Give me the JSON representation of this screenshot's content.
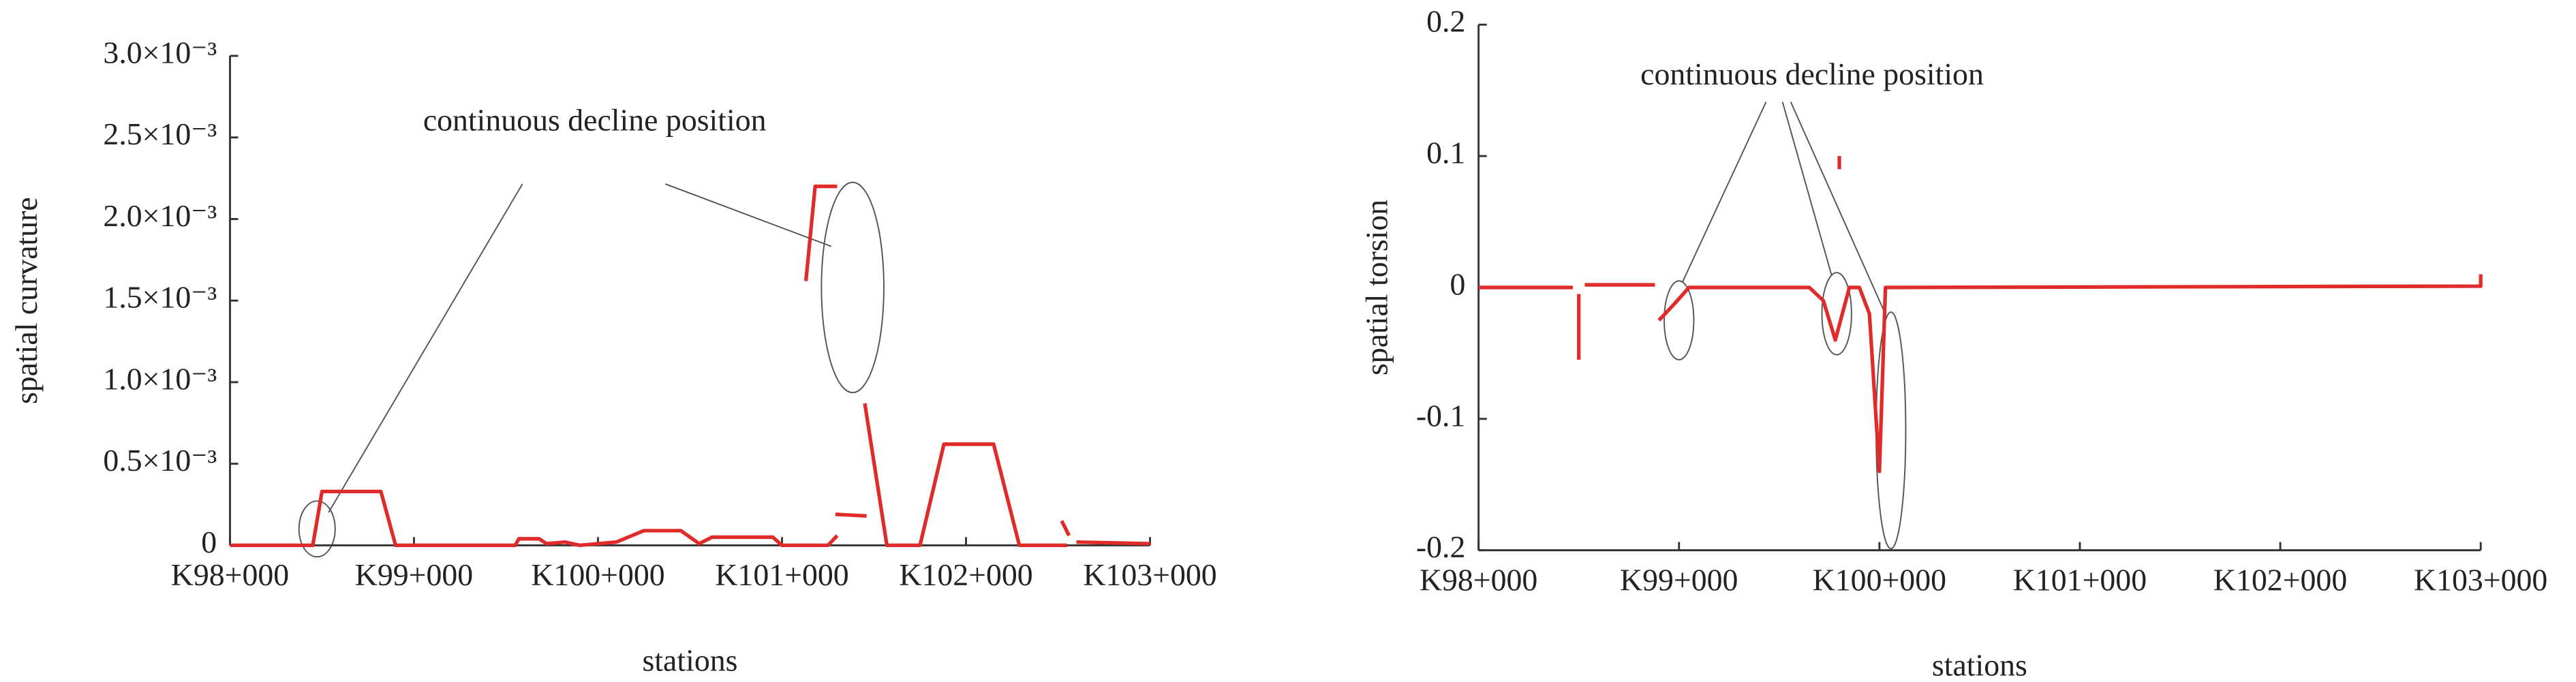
{
  "chart_data": [
    {
      "type": "line",
      "x_label": "stations",
      "y_label": "spatial curvature",
      "annotation": "continuous decline position",
      "xlim": [
        98,
        103
      ],
      "xticks": [
        {
          "value": 98,
          "label": "K98+000"
        },
        {
          "value": 99,
          "label": "K99+000"
        },
        {
          "value": 100,
          "label": "K100+000"
        },
        {
          "value": 101,
          "label": "K101+000"
        },
        {
          "value": 102,
          "label": "K102+000"
        },
        {
          "value": 103,
          "label": "K103+000"
        }
      ],
      "ylim": [
        0,
        0.003
      ],
      "yticks": [
        0,
        {
          "value": 0.0005,
          "label": "0.5×10⁻³"
        },
        {
          "value": 0.001,
          "label": "1.0×10⁻³"
        },
        {
          "value": 0.0015,
          "label": "1.5×10⁻³"
        },
        {
          "value": 0.002,
          "label": "2.0×10⁻³"
        },
        {
          "value": 0.0025,
          "label": "2.5×10⁻³"
        },
        {
          "value": 0.003,
          "label": "3.0×10⁻³"
        }
      ],
      "grid": false,
      "series": [
        {
          "color": "#e02b2b",
          "x": [
            98,
            98.45,
            98.5,
            98.82,
            98.9,
            99.55,
            99.57,
            99.68,
            99.72,
            99.82,
            99.9,
            100.1,
            100.25,
            100.45,
            100.55,
            100.62,
            100.72,
            100.95,
            101.0,
            101.25,
            101.3,
            null,
            101.13,
            101.18,
            101.3,
            null,
            101.29,
            101.46,
            null,
            101.45,
            101.57,
            101.75,
            101.88,
            102.15,
            102.29,
            102.55,
            null,
            102.52,
            102.56,
            null,
            102.6,
            103
          ],
          "values": [
            0,
            0,
            0.00033,
            0.00033,
            0,
            0,
            4e-05,
            4e-05,
            1e-05,
            2e-05,
            0,
            2e-05,
            9e-05,
            9e-05,
            1e-05,
            5e-05,
            5e-05,
            5e-05,
            0,
            0,
            6e-05,
            null,
            0.00162,
            0.0022,
            0.0022,
            null,
            0.00019,
            0.00018,
            null,
            0.00087,
            0,
            0,
            0.00062,
            0.00062,
            0,
            0,
            null,
            0.00015,
            6e-05,
            null,
            2e-05,
            1e-05
          ]
        }
      ]
    },
    {
      "type": "line",
      "x_label": "stations",
      "y_label": "spatial torsion",
      "annotation": "continuous decline position",
      "xlim": [
        98,
        103
      ],
      "xticks": [
        {
          "value": 98,
          "label": "K98+000"
        },
        {
          "value": 99,
          "label": "K99+000"
        },
        {
          "value": 100,
          "label": "K100+000"
        },
        {
          "value": 101,
          "label": "K101+000"
        },
        {
          "value": 102,
          "label": "K102+000"
        },
        {
          "value": 103,
          "label": "K103+000"
        }
      ],
      "ylim": [
        -0.2,
        0.2
      ],
      "yticks": [
        0.2,
        0.1,
        0,
        -0.1,
        -0.2
      ],
      "grid": false,
      "series": [
        {
          "color": "#e02b2b",
          "x": [
            98,
            98.47,
            null,
            98.5,
            98.5,
            null,
            98.53,
            98.88,
            null,
            98.9,
            98.98,
            99.05,
            99.65,
            99.72,
            99.78,
            99.85,
            99.9,
            99.95,
            100.0,
            100.03,
            103,
            103,
            null,
            99.8,
            99.8
          ],
          "values": [
            0,
            0,
            null,
            -0.055,
            -0.005,
            null,
            0.002,
            0.002,
            null,
            -0.025,
            -0.012,
            0,
            0,
            -0.01,
            -0.04,
            0,
            0,
            -0.02,
            -0.14,
            0,
            0.001,
            0.01,
            null,
            0.1,
            0.09
          ]
        }
      ]
    }
  ]
}
